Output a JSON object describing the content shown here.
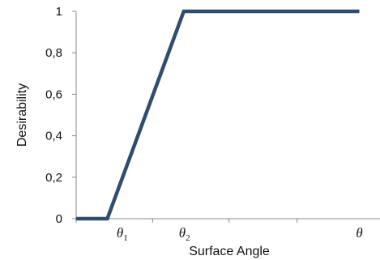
{
  "chart_data": {
    "type": "line",
    "title": "",
    "xlabel": "Surface Angle",
    "ylabel": "Desirability",
    "x_tick_labels": [
      {
        "symbol": "θ",
        "sub": "1",
        "at": 0.16
      },
      {
        "symbol": "θ",
        "sub": "2",
        "at": 0.38
      },
      {
        "symbol": "θ",
        "sub": "",
        "at": 1.0
      }
    ],
    "x_ticks": [
      0,
      0.27,
      0.54,
      0.78
    ],
    "ylim": [
      0,
      1
    ],
    "xlim": [
      0,
      1.06
    ],
    "y_ticks": [
      0,
      0.2,
      0.4,
      0.6,
      0.8,
      1
    ],
    "y_tick_labels": [
      "0",
      "0,2",
      "0,4",
      "0,6",
      "0,8",
      "1"
    ],
    "series": [
      {
        "color": "#2f4d6e",
        "points": [
          [
            0,
            0
          ],
          [
            0.11,
            0
          ],
          [
            0.38,
            1
          ],
          [
            1.0,
            1
          ]
        ]
      }
    ],
    "grid": false,
    "legend": "none"
  }
}
